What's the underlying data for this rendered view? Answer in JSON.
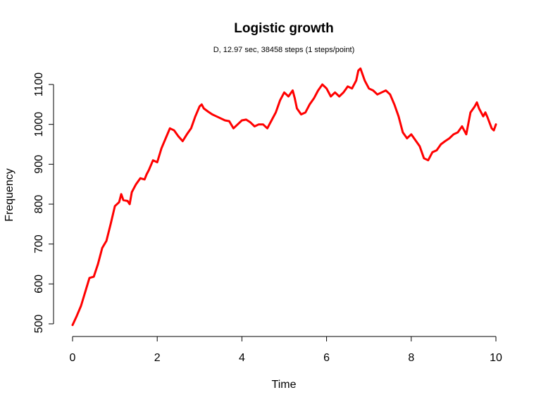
{
  "chart_data": {
    "type": "line",
    "title": "Logistic growth",
    "subtitle": "D, 12.97 sec, 38458 steps (1 steps/point)",
    "xlabel": "Time",
    "ylabel": "Frequency",
    "xlim": [
      0,
      10
    ],
    "ylim": [
      500,
      1100
    ],
    "x_ticks": [
      0,
      2,
      4,
      6,
      8,
      10
    ],
    "y_ticks": [
      500,
      600,
      700,
      800,
      900,
      1000,
      1100
    ],
    "grid": false,
    "series": [
      {
        "color": "#ff0000",
        "points": [
          [
            0.0,
            497
          ],
          [
            0.1,
            520
          ],
          [
            0.2,
            545
          ],
          [
            0.3,
            580
          ],
          [
            0.4,
            615
          ],
          [
            0.5,
            618
          ],
          [
            0.6,
            650
          ],
          [
            0.7,
            690
          ],
          [
            0.8,
            708
          ],
          [
            0.9,
            750
          ],
          [
            1.0,
            795
          ],
          [
            1.1,
            805
          ],
          [
            1.15,
            825
          ],
          [
            1.2,
            810
          ],
          [
            1.3,
            808
          ],
          [
            1.35,
            800
          ],
          [
            1.4,
            830
          ],
          [
            1.5,
            850
          ],
          [
            1.6,
            865
          ],
          [
            1.7,
            862
          ],
          [
            1.75,
            875
          ],
          [
            1.8,
            885
          ],
          [
            1.9,
            910
          ],
          [
            2.0,
            905
          ],
          [
            2.1,
            940
          ],
          [
            2.2,
            965
          ],
          [
            2.3,
            990
          ],
          [
            2.4,
            985
          ],
          [
            2.5,
            970
          ],
          [
            2.6,
            958
          ],
          [
            2.7,
            975
          ],
          [
            2.8,
            990
          ],
          [
            2.9,
            1020
          ],
          [
            3.0,
            1045
          ],
          [
            3.05,
            1050
          ],
          [
            3.1,
            1040
          ],
          [
            3.2,
            1032
          ],
          [
            3.3,
            1025
          ],
          [
            3.4,
            1020
          ],
          [
            3.5,
            1015
          ],
          [
            3.6,
            1010
          ],
          [
            3.7,
            1008
          ],
          [
            3.8,
            990
          ],
          [
            3.9,
            1000
          ],
          [
            4.0,
            1010
          ],
          [
            4.1,
            1012
          ],
          [
            4.2,
            1005
          ],
          [
            4.3,
            995
          ],
          [
            4.4,
            1000
          ],
          [
            4.5,
            1000
          ],
          [
            4.6,
            990
          ],
          [
            4.7,
            1010
          ],
          [
            4.8,
            1030
          ],
          [
            4.9,
            1060
          ],
          [
            5.0,
            1080
          ],
          [
            5.1,
            1070
          ],
          [
            5.2,
            1085
          ],
          [
            5.25,
            1065
          ],
          [
            5.3,
            1040
          ],
          [
            5.4,
            1025
          ],
          [
            5.5,
            1030
          ],
          [
            5.6,
            1050
          ],
          [
            5.7,
            1065
          ],
          [
            5.8,
            1085
          ],
          [
            5.9,
            1100
          ],
          [
            6.0,
            1090
          ],
          [
            6.1,
            1070
          ],
          [
            6.2,
            1080
          ],
          [
            6.3,
            1070
          ],
          [
            6.4,
            1080
          ],
          [
            6.5,
            1095
          ],
          [
            6.6,
            1090
          ],
          [
            6.7,
            1110
          ],
          [
            6.75,
            1135
          ],
          [
            6.8,
            1140
          ],
          [
            6.9,
            1110
          ],
          [
            7.0,
            1090
          ],
          [
            7.1,
            1085
          ],
          [
            7.2,
            1075
          ],
          [
            7.3,
            1080
          ],
          [
            7.4,
            1085
          ],
          [
            7.5,
            1075
          ],
          [
            7.6,
            1050
          ],
          [
            7.7,
            1020
          ],
          [
            7.8,
            980
          ],
          [
            7.9,
            965
          ],
          [
            8.0,
            975
          ],
          [
            8.1,
            960
          ],
          [
            8.2,
            945
          ],
          [
            8.3,
            915
          ],
          [
            8.4,
            910
          ],
          [
            8.5,
            930
          ],
          [
            8.6,
            935
          ],
          [
            8.7,
            950
          ],
          [
            8.8,
            958
          ],
          [
            8.9,
            965
          ],
          [
            9.0,
            975
          ],
          [
            9.1,
            980
          ],
          [
            9.2,
            995
          ],
          [
            9.3,
            975
          ],
          [
            9.4,
            1030
          ],
          [
            9.5,
            1045
          ],
          [
            9.55,
            1055
          ],
          [
            9.6,
            1040
          ],
          [
            9.7,
            1020
          ],
          [
            9.75,
            1030
          ],
          [
            9.8,
            1018
          ],
          [
            9.9,
            990
          ],
          [
            9.95,
            985
          ],
          [
            10.0,
            1000
          ]
        ]
      }
    ]
  }
}
